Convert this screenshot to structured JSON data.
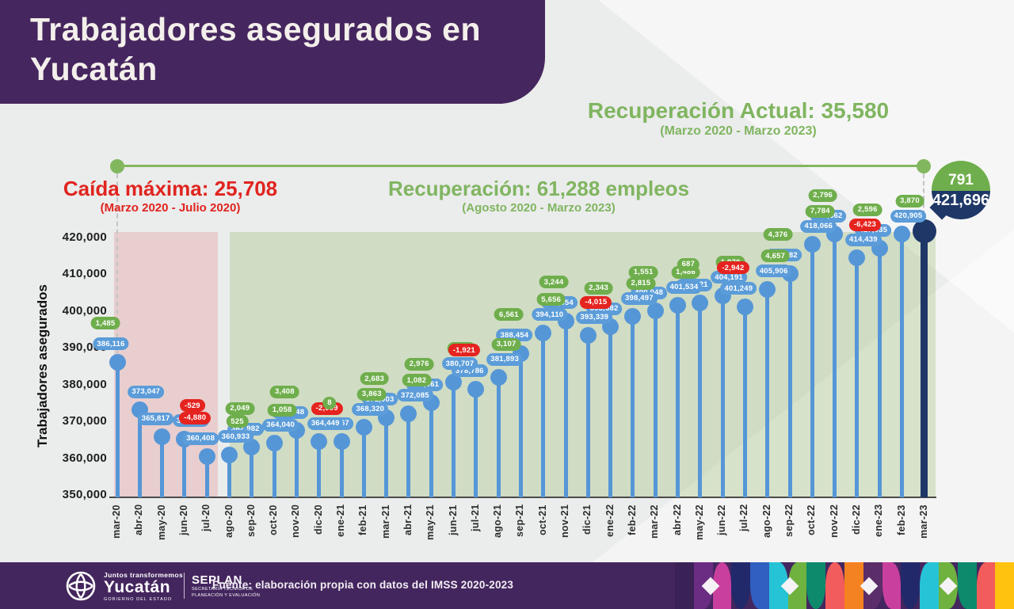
{
  "header": {
    "title_lines": [
      "Trabajadores asegurados en",
      "Yucatán"
    ]
  },
  "annotations": {
    "recuperacion_actual": {
      "title": "Recuperación Actual: 35,580",
      "subtitle": "(Marzo 2020 - Marzo 2023)",
      "color": "#80b560"
    },
    "caida_maxima": {
      "title": "Caída máxima: 25,708",
      "subtitle": "(Marzo 2020 - Julio 2020)",
      "color": "#e0241f"
    },
    "recuperacion": {
      "title": "Recuperación: 61,288 empleos",
      "subtitle": "(Agosto 2020 - Marzo 2023)",
      "color": "#80b560"
    }
  },
  "final_bubble": {
    "change": "791",
    "value": "421,696"
  },
  "chart_data": {
    "type": "bar",
    "variant": "lollipop",
    "title": "Trabajadores asegurados en Yucatán",
    "ylabel": "Trabajadores asegurados",
    "ylim": [
      350000,
      420000
    ],
    "ytick_step": 10000,
    "grid": false,
    "categories": [
      "mar-20",
      "abr-20",
      "may-20",
      "jun-20",
      "jul-20",
      "ago-20",
      "sep-20",
      "oct-20",
      "nov-20",
      "dic-20",
      "ene-21",
      "feb-21",
      "mar-21",
      "abr-21",
      "may-21",
      "jun-21",
      "jul-21",
      "ago-21",
      "sep-21",
      "oct-21",
      "nov-21",
      "dic-21",
      "ene-22",
      "feb-22",
      "mar-22",
      "abr-22",
      "may-22",
      "jun-22",
      "jul-22",
      "ago-22",
      "sep-22",
      "oct-22",
      "nov-22",
      "dic-22",
      "ene-23",
      "feb-23",
      "mar-23"
    ],
    "values": [
      386116,
      373047,
      365817,
      365288,
      360408,
      360933,
      362982,
      364040,
      367448,
      364449,
      364457,
      368320,
      371003,
      372085,
      375061,
      380707,
      378786,
      381893,
      388454,
      394110,
      397354,
      393339,
      395682,
      398497,
      400048,
      401534,
      402221,
      404191,
      401249,
      405906,
      410282,
      418066,
      420862,
      414439,
      417035,
      420905,
      421696
    ],
    "changes": [
      1485,
      null,
      null,
      -529,
      -4880,
      525,
      2049,
      1058,
      3408,
      -2999,
      8,
      3863,
      2683,
      1082,
      2976,
      5646,
      -1921,
      3107,
      6561,
      5656,
      3244,
      -4015,
      2343,
      2815,
      1551,
      1486,
      687,
      1970,
      -2942,
      4657,
      4376,
      7784,
      2796,
      -6423,
      2596,
      3870,
      null
    ],
    "marker_color": "#5596d7",
    "final_marker_color": "#1e3766",
    "positive_color": "#6fae4c",
    "negative_color": "#e5231f",
    "regions": [
      {
        "name": "caida-maxima-region",
        "from": 0,
        "to": 4,
        "color": "rgba(224,70,70,0.18)"
      },
      {
        "name": "recuperacion-region",
        "from": 5,
        "to": 36,
        "color": "rgba(139,180,92,0.28)"
      }
    ]
  },
  "footer": {
    "logo": {
      "tagline": "Juntos transformemos",
      "name": "Yucatán",
      "sub": "GOBIERNO DEL ESTADO"
    },
    "seplan": {
      "name": "SEPLAN",
      "sub1": "SECRETARÍA TÉCNICA DE",
      "sub2": "PLANEACIÓN Y EVALUACIÓN"
    },
    "source": "Fuente: elaboración propia con datos del IMSS 2020-2023",
    "pattern_blocks": [
      {
        "c": "#3a2257",
        "r": "0"
      },
      {
        "c": "#6b2d83",
        "r": "0 0 50% 0"
      },
      {
        "c": "#c93f9e",
        "r": "50% 50% 0 0"
      },
      {
        "c": "#22296b",
        "r": "0 0 50% 50%"
      },
      {
        "c": "#2f5fc0",
        "r": "0 0 0 50%"
      },
      {
        "c": "#26c3d6",
        "r": "0 50% 0 0"
      },
      {
        "c": "#6fb23f",
        "r": "50% 0 0 0"
      },
      {
        "c": "#0d8a6b",
        "r": "0 0 50% 50%"
      },
      {
        "c": "#f25c5c",
        "r": "50% 50% 0 0"
      },
      {
        "c": "#f58220",
        "r": "0"
      },
      {
        "c": "#5b2d69",
        "r": "0 0 50% 0"
      },
      {
        "c": "#c93f9e",
        "r": "0 50% 0 50%"
      },
      {
        "c": "#22296b",
        "r": "0 0 50% 50%"
      },
      {
        "c": "#26c3d6",
        "r": "50% 0 0 0"
      },
      {
        "c": "#6fb23f",
        "r": "0 50% 50% 0"
      },
      {
        "c": "#0d8a6b",
        "r": "0 0 0 50%"
      },
      {
        "c": "#f25c5c",
        "r": "50% 0 0 0"
      },
      {
        "c": "#ffc20e",
        "r": "0"
      }
    ]
  }
}
